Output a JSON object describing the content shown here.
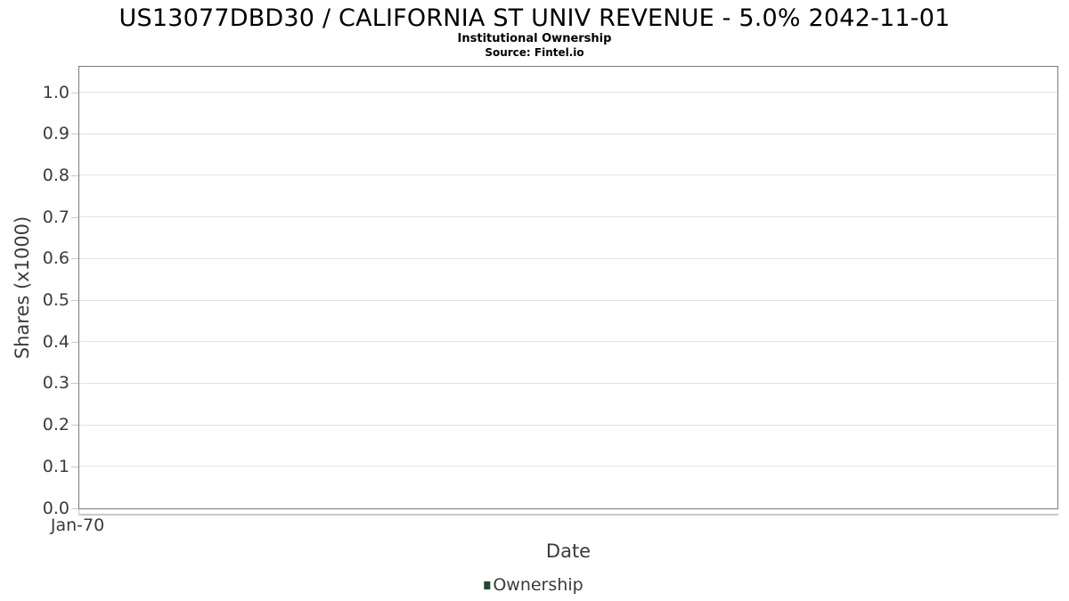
{
  "chart_data": {
    "type": "line",
    "title": "US13077DBD30 / CALIFORNIA ST UNIV REVENUE - 5.0% 2042-11-01",
    "subtitle": "Institutional Ownership",
    "source": "Source: Fintel.io",
    "xlabel": "Date",
    "ylabel": "Shares (x1000)",
    "x_ticks": [
      "Jan-70"
    ],
    "y_tick_labels": [
      "0.0",
      "0.1",
      "0.2",
      "0.3",
      "0.4",
      "0.5",
      "0.6",
      "0.7",
      "0.8",
      "0.9",
      "1.0"
    ],
    "ylim": [
      0,
      1.06
    ],
    "grid": true,
    "legend": {
      "position": "bottom",
      "entries": [
        {
          "label": "Ownership",
          "color": "#1e4b2d"
        }
      ]
    },
    "series": [
      {
        "name": "Ownership",
        "x": [],
        "values": []
      }
    ]
  },
  "colors": {
    "plot_border": "#7c7c7c",
    "gridline": "#e2e2e2",
    "tick_mark": "#c9c9c9",
    "axis_line": "#c9c9c9",
    "tick_text": "#3b3b3b",
    "axis_title_text": "#3b3b3b",
    "legend_text": "#3b3b3b",
    "title_text": "#000000"
  }
}
